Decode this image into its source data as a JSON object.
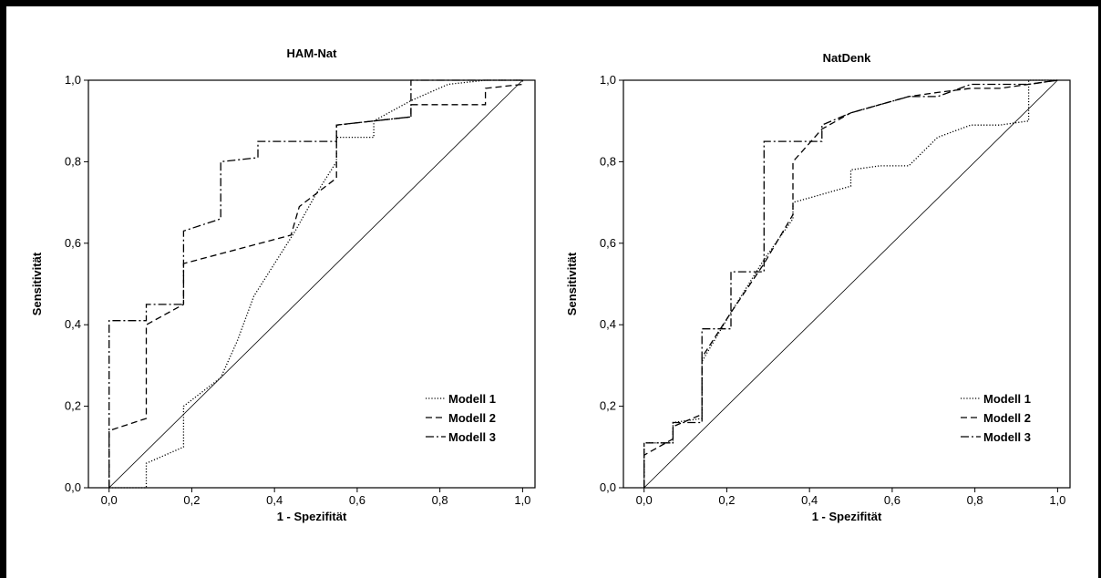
{
  "chart_data": [
    {
      "type": "line",
      "title": "HAM-Nat",
      "xlabel": "1 - Spezifität",
      "ylabel": "Sensitivität",
      "xlim": [
        -0.05,
        1.03
      ],
      "ylim": [
        0,
        1
      ],
      "xticks": [
        "0,0",
        "0,2",
        "0,4",
        "0,6",
        "0,8",
        "1,0"
      ],
      "yticks": [
        "0,0",
        "0,2",
        "0,4",
        "0,6",
        "0,8",
        "1,0"
      ],
      "legend_position": "bottom-right",
      "reference_line": [
        [
          0,
          0
        ],
        [
          1,
          1
        ]
      ],
      "series": [
        {
          "name": "Modell 1",
          "style": "dotted",
          "points": [
            [
              0,
              0
            ],
            [
              0.09,
              0
            ],
            [
              0.09,
              0.06
            ],
            [
              0.18,
              0.1
            ],
            [
              0.18,
              0.2
            ],
            [
              0.27,
              0.27
            ],
            [
              0.31,
              0.36
            ],
            [
              0.35,
              0.47
            ],
            [
              0.45,
              0.63
            ],
            [
              0.5,
              0.72
            ],
            [
              0.55,
              0.8
            ],
            [
              0.55,
              0.86
            ],
            [
              0.64,
              0.86
            ],
            [
              0.64,
              0.9
            ],
            [
              0.73,
              0.95
            ],
            [
              0.82,
              0.99
            ],
            [
              0.91,
              1.0
            ],
            [
              1.0,
              1.0
            ]
          ]
        },
        {
          "name": "Modell 2",
          "style": "dashed",
          "points": [
            [
              0,
              0
            ],
            [
              0,
              0.14
            ],
            [
              0.09,
              0.17
            ],
            [
              0.09,
              0.4
            ],
            [
              0.18,
              0.45
            ],
            [
              0.18,
              0.55
            ],
            [
              0.44,
              0.62
            ],
            [
              0.46,
              0.69
            ],
            [
              0.55,
              0.76
            ],
            [
              0.55,
              0.89
            ],
            [
              0.73,
              0.91
            ],
            [
              0.73,
              0.94
            ],
            [
              0.91,
              0.94
            ],
            [
              0.91,
              0.98
            ],
            [
              1.0,
              0.99
            ],
            [
              1.0,
              1.0
            ]
          ]
        },
        {
          "name": "Modell 3",
          "style": "dashdot",
          "points": [
            [
              0,
              0
            ],
            [
              0,
              0.41
            ],
            [
              0.09,
              0.41
            ],
            [
              0.09,
              0.45
            ],
            [
              0.18,
              0.45
            ],
            [
              0.18,
              0.63
            ],
            [
              0.27,
              0.66
            ],
            [
              0.27,
              0.8
            ],
            [
              0.36,
              0.81
            ],
            [
              0.36,
              0.85
            ],
            [
              0.55,
              0.85
            ],
            [
              0.55,
              0.89
            ],
            [
              0.73,
              0.91
            ],
            [
              0.73,
              1.0
            ],
            [
              1.0,
              1.0
            ]
          ]
        }
      ]
    },
    {
      "type": "line",
      "title": "NatDenk",
      "xlabel": "1 - Spezifität",
      "ylabel": "Sensitivität",
      "xlim": [
        -0.05,
        1.03
      ],
      "ylim": [
        0,
        1
      ],
      "xticks": [
        "0,0",
        "0,2",
        "0,4",
        "0,6",
        "0,8",
        "1,0"
      ],
      "yticks": [
        "0,0",
        "0,2",
        "0,4",
        "0,6",
        "0,8",
        "1,0"
      ],
      "legend_position": "bottom-right",
      "reference_line": [
        [
          0,
          0
        ],
        [
          1,
          1
        ]
      ],
      "series": [
        {
          "name": "Modell 1",
          "style": "dotted",
          "points": [
            [
              0,
              0
            ],
            [
              0,
              0.11
            ],
            [
              0.07,
              0.11
            ],
            [
              0.07,
              0.16
            ],
            [
              0.14,
              0.17
            ],
            [
              0.14,
              0.31
            ],
            [
              0.21,
              0.43
            ],
            [
              0.29,
              0.56
            ],
            [
              0.36,
              0.66
            ],
            [
              0.36,
              0.7
            ],
            [
              0.43,
              0.72
            ],
            [
              0.5,
              0.74
            ],
            [
              0.5,
              0.78
            ],
            [
              0.57,
              0.79
            ],
            [
              0.64,
              0.79
            ],
            [
              0.71,
              0.86
            ],
            [
              0.79,
              0.89
            ],
            [
              0.86,
              0.89
            ],
            [
              0.93,
              0.9
            ],
            [
              0.93,
              1.0
            ],
            [
              1.0,
              1.0
            ]
          ]
        },
        {
          "name": "Modell 2",
          "style": "dashed",
          "points": [
            [
              0,
              0
            ],
            [
              0,
              0.08
            ],
            [
              0.07,
              0.12
            ],
            [
              0.07,
              0.15
            ],
            [
              0.14,
              0.18
            ],
            [
              0.14,
              0.32
            ],
            [
              0.21,
              0.43
            ],
            [
              0.29,
              0.55
            ],
            [
              0.36,
              0.67
            ],
            [
              0.36,
              0.8
            ],
            [
              0.43,
              0.88
            ],
            [
              0.5,
              0.92
            ],
            [
              0.57,
              0.94
            ],
            [
              0.64,
              0.96
            ],
            [
              0.71,
              0.97
            ],
            [
              0.79,
              0.98
            ],
            [
              0.86,
              0.98
            ],
            [
              0.93,
              0.99
            ],
            [
              1.0,
              1.0
            ]
          ]
        },
        {
          "name": "Modell 3",
          "style": "dashdot",
          "points": [
            [
              0,
              0
            ],
            [
              0,
              0.11
            ],
            [
              0.07,
              0.11
            ],
            [
              0.07,
              0.16
            ],
            [
              0.14,
              0.16
            ],
            [
              0.14,
              0.39
            ],
            [
              0.21,
              0.39
            ],
            [
              0.21,
              0.53
            ],
            [
              0.29,
              0.53
            ],
            [
              0.29,
              0.85
            ],
            [
              0.36,
              0.85
            ],
            [
              0.43,
              0.85
            ],
            [
              0.43,
              0.89
            ],
            [
              0.5,
              0.92
            ],
            [
              0.57,
              0.94
            ],
            [
              0.64,
              0.96
            ],
            [
              0.71,
              0.96
            ],
            [
              0.79,
              0.99
            ],
            [
              0.93,
              0.99
            ],
            [
              1.0,
              1.0
            ]
          ]
        }
      ]
    }
  ]
}
